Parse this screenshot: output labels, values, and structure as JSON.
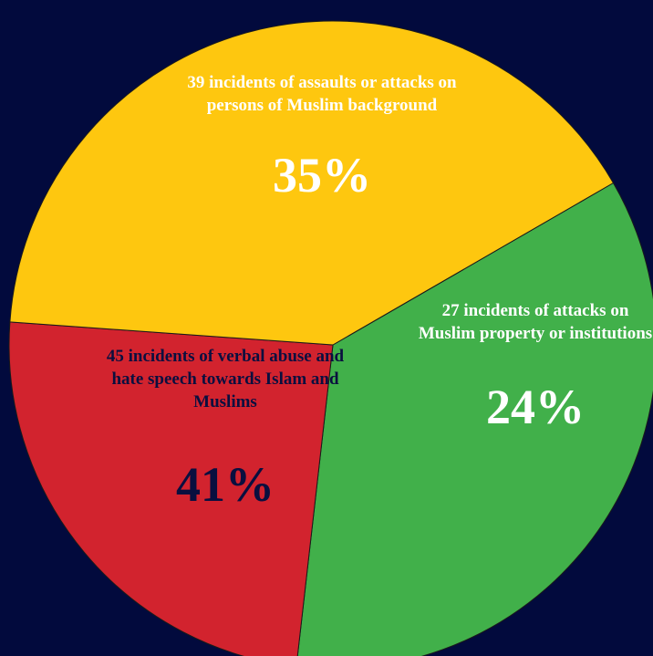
{
  "chart_data": {
    "type": "pie",
    "slices": [
      {
        "label": "39 incidents of assaults or attacks on persons of Muslim background",
        "percent_label": "35%",
        "count": 39,
        "percent": 35,
        "color": "#41b04a",
        "text_color": "#ffffff"
      },
      {
        "label": "27 incidents of attacks on Muslim property or institutions",
        "percent_label": "24%",
        "count": 27,
        "percent": 24,
        "color": "#d2232e",
        "text_color": "#ffffff"
      },
      {
        "label": "45 incidents of verbal abuse and hate speech towards Islam and Muslims",
        "percent_label": "41%",
        "count": 45,
        "percent": 41,
        "color": "#fec70f",
        "text_color": "#0a0f3f"
      }
    ],
    "background_color": "#020a3d",
    "start_angle_deg": -30,
    "direction": "clockwise"
  }
}
